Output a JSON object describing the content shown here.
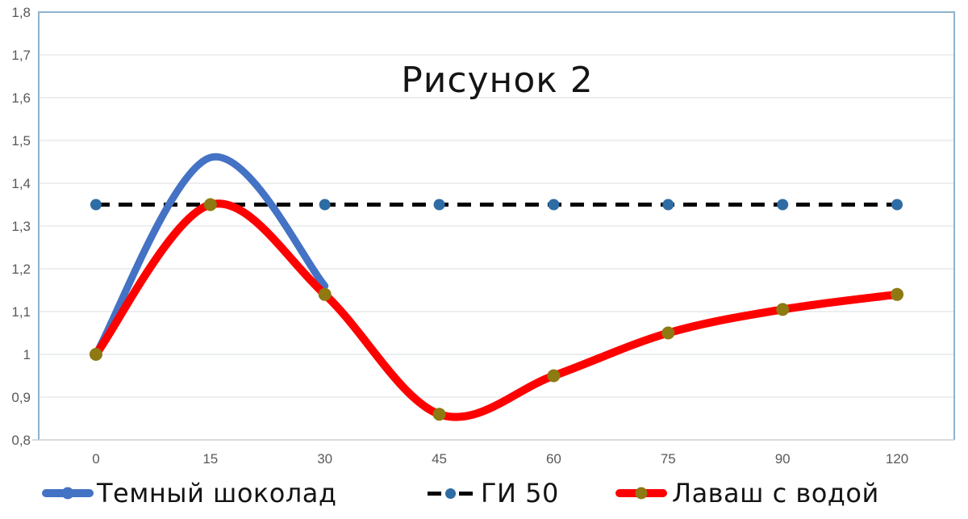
{
  "chart_data": {
    "type": "line",
    "title": "Рисунок 2",
    "categories": [
      "0",
      "15",
      "30",
      "45",
      "60",
      "75",
      "90",
      "120"
    ],
    "ylim": [
      0.8,
      1.8
    ],
    "y_ticks": [
      {
        "value": 1.8,
        "label": "1,8"
      },
      {
        "value": 1.7,
        "label": "1,7"
      },
      {
        "value": 1.6,
        "label": "1,6"
      },
      {
        "value": 1.5,
        "label": "1,5"
      },
      {
        "value": 1.4,
        "label": "1,4"
      },
      {
        "value": 1.3,
        "label": "1,3"
      },
      {
        "value": 1.2,
        "label": "1,2"
      },
      {
        "value": 1.1,
        "label": "1,1"
      },
      {
        "value": 1.0,
        "label": "1"
      },
      {
        "value": 0.9,
        "label": "0,9"
      },
      {
        "value": 0.8,
        "label": "0,8"
      }
    ],
    "grid": "horizontal",
    "legend_position": "bottom",
    "series": [
      {
        "name": "Темный шоколад",
        "style": "smooth",
        "color": "#4472C4",
        "line_width": 9,
        "values": [
          1.0,
          1.46,
          1.16
        ]
      },
      {
        "name": "ГИ 50",
        "style": "dashed",
        "color": "#000000",
        "marker_color": "#2E6DA4",
        "line_width": 5,
        "values": [
          1.35,
          1.35,
          1.35,
          1.35,
          1.35,
          1.35,
          1.35,
          1.35
        ]
      },
      {
        "name": "Лаваш с водой",
        "style": "smooth",
        "color": "#FF0000",
        "marker_color": "#8E7912",
        "line_width": 10,
        "values": [
          1.0,
          1.35,
          1.14,
          0.86,
          0.95,
          1.05,
          1.105,
          1.14
        ]
      }
    ],
    "colors": {
      "grid": "#E6E8EB",
      "plot_border": "#8FB2CE",
      "axis_line": "#C8CDD1",
      "tick_text": "#595959",
      "title_text": "#141414"
    }
  }
}
